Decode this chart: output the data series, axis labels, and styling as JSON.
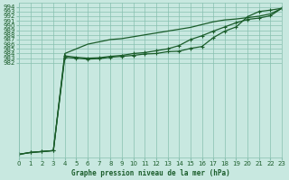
{
  "title": "Graphe pression niveau de la mer (hPa)",
  "background_color": "#c8e8e0",
  "grid_color": "#88c0b0",
  "line_color": "#1a5c2a",
  "xlim": [
    0,
    23
  ],
  "ylim": [
    961.8,
    994.8
  ],
  "yticks": [
    982,
    983,
    984,
    985,
    986,
    987,
    988,
    989,
    990,
    991,
    992,
    993,
    994
  ],
  "xticks": [
    0,
    1,
    2,
    3,
    4,
    5,
    6,
    7,
    8,
    9,
    10,
    11,
    12,
    13,
    14,
    15,
    16,
    17,
    18,
    19,
    20,
    21,
    22,
    23
  ],
  "line1_x": [
    0,
    1,
    2,
    3,
    4,
    5,
    6,
    7,
    8,
    9,
    10,
    11,
    12,
    13,
    14,
    15,
    16,
    17,
    18,
    19,
    20,
    21,
    22,
    23
  ],
  "line1_y": [
    962.4,
    962.8,
    963.0,
    963.2,
    983.2,
    983.0,
    982.8,
    982.9,
    983.2,
    983.4,
    983.6,
    983.9,
    984.0,
    984.4,
    984.5,
    985.1,
    985.5,
    987.4,
    988.8,
    989.7,
    991.9,
    993.0,
    993.3,
    993.7
  ],
  "line2_x": [
    0,
    1,
    2,
    3,
    4,
    5,
    6,
    7,
    8,
    9,
    10,
    11,
    12,
    13,
    14,
    15,
    16,
    17,
    18,
    19,
    20,
    21,
    22,
    23
  ],
  "line2_y": [
    962.4,
    962.8,
    963.0,
    963.2,
    984.0,
    985.0,
    986.0,
    986.5,
    987.0,
    987.2,
    987.6,
    988.0,
    988.4,
    988.8,
    989.2,
    989.6,
    990.2,
    990.8,
    991.2,
    991.4,
    991.7,
    992.0,
    992.5,
    993.7
  ],
  "line3_x": [
    0,
    1,
    2,
    3,
    4,
    5,
    6,
    7,
    8,
    9,
    10,
    11,
    12,
    13,
    14,
    15,
    16,
    17,
    18,
    19,
    20,
    21,
    22,
    23
  ],
  "line3_y": [
    962.4,
    962.8,
    963.0,
    963.2,
    983.5,
    983.2,
    983.0,
    983.1,
    983.4,
    983.6,
    984.0,
    984.2,
    984.6,
    985.0,
    985.7,
    987.0,
    987.8,
    988.8,
    989.7,
    990.6,
    991.3,
    991.6,
    992.1,
    993.7
  ]
}
